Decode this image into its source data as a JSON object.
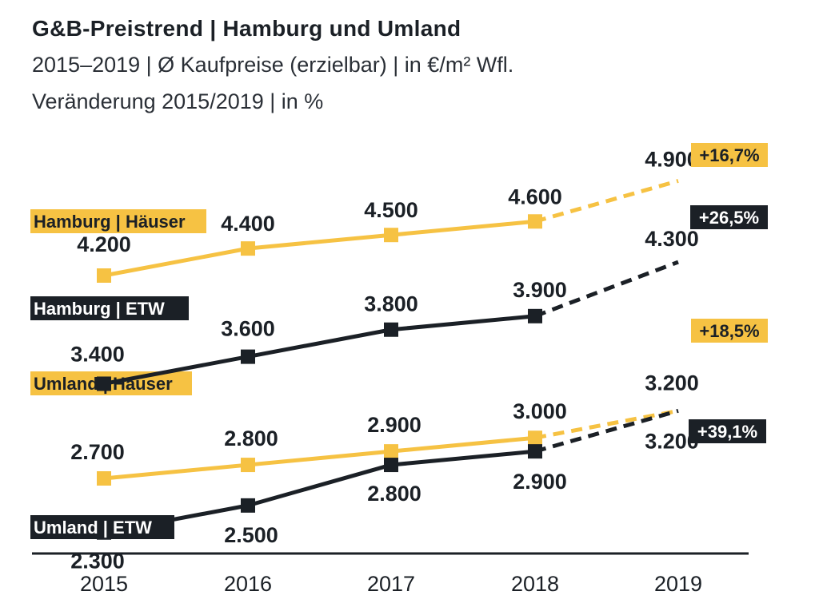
{
  "chart_data": {
    "type": "line",
    "title": "G&B-Preistrend | Hamburg und Umland",
    "subtitle": "2015–2019 | Ø Kaufpreise (erzielbar) | in €/m² Wfl.",
    "subtitle2": "Veränderung 2015/2019 | in %",
    "x": [
      "2015",
      "2016",
      "2017",
      "2018",
      "2019"
    ],
    "ylim": [
      2000,
      5000
    ],
    "grid": false,
    "legend": "inline",
    "series": [
      {
        "id": "hh_haeuser",
        "name": "Hamburg | Häuser",
        "values": [
          4200,
          4400,
          4500,
          4600,
          4900
        ],
        "labels": [
          "4.200",
          "4.400",
          "4.500",
          "4.600",
          "4.900"
        ],
        "change": "+16,7%",
        "color": "#f6c243"
      },
      {
        "id": "hh_etw",
        "name": "Hamburg | ETW",
        "values": [
          3400,
          3600,
          3800,
          3900,
          4300
        ],
        "labels": [
          "3.400",
          "3.600",
          "3.800",
          "3.900",
          "4.300"
        ],
        "change": "+26,5%",
        "color": "#1b2026"
      },
      {
        "id": "ul_haeuser",
        "name": "Umland | Häuser",
        "values": [
          2700,
          2800,
          2900,
          3000,
          3200
        ],
        "labels": [
          "2.700",
          "2.800",
          "2.900",
          "3.000",
          "3.200"
        ],
        "change": "+18,5%",
        "color": "#f6c243"
      },
      {
        "id": "ul_etw",
        "name": "Umland | ETW",
        "values": [
          2300,
          2500,
          2800,
          2900,
          3200
        ],
        "labels": [
          "2.300",
          "2.500",
          "2.800",
          "2.900",
          "3.200"
        ],
        "change": "+39,1%",
        "color": "#1b2026"
      }
    ]
  }
}
